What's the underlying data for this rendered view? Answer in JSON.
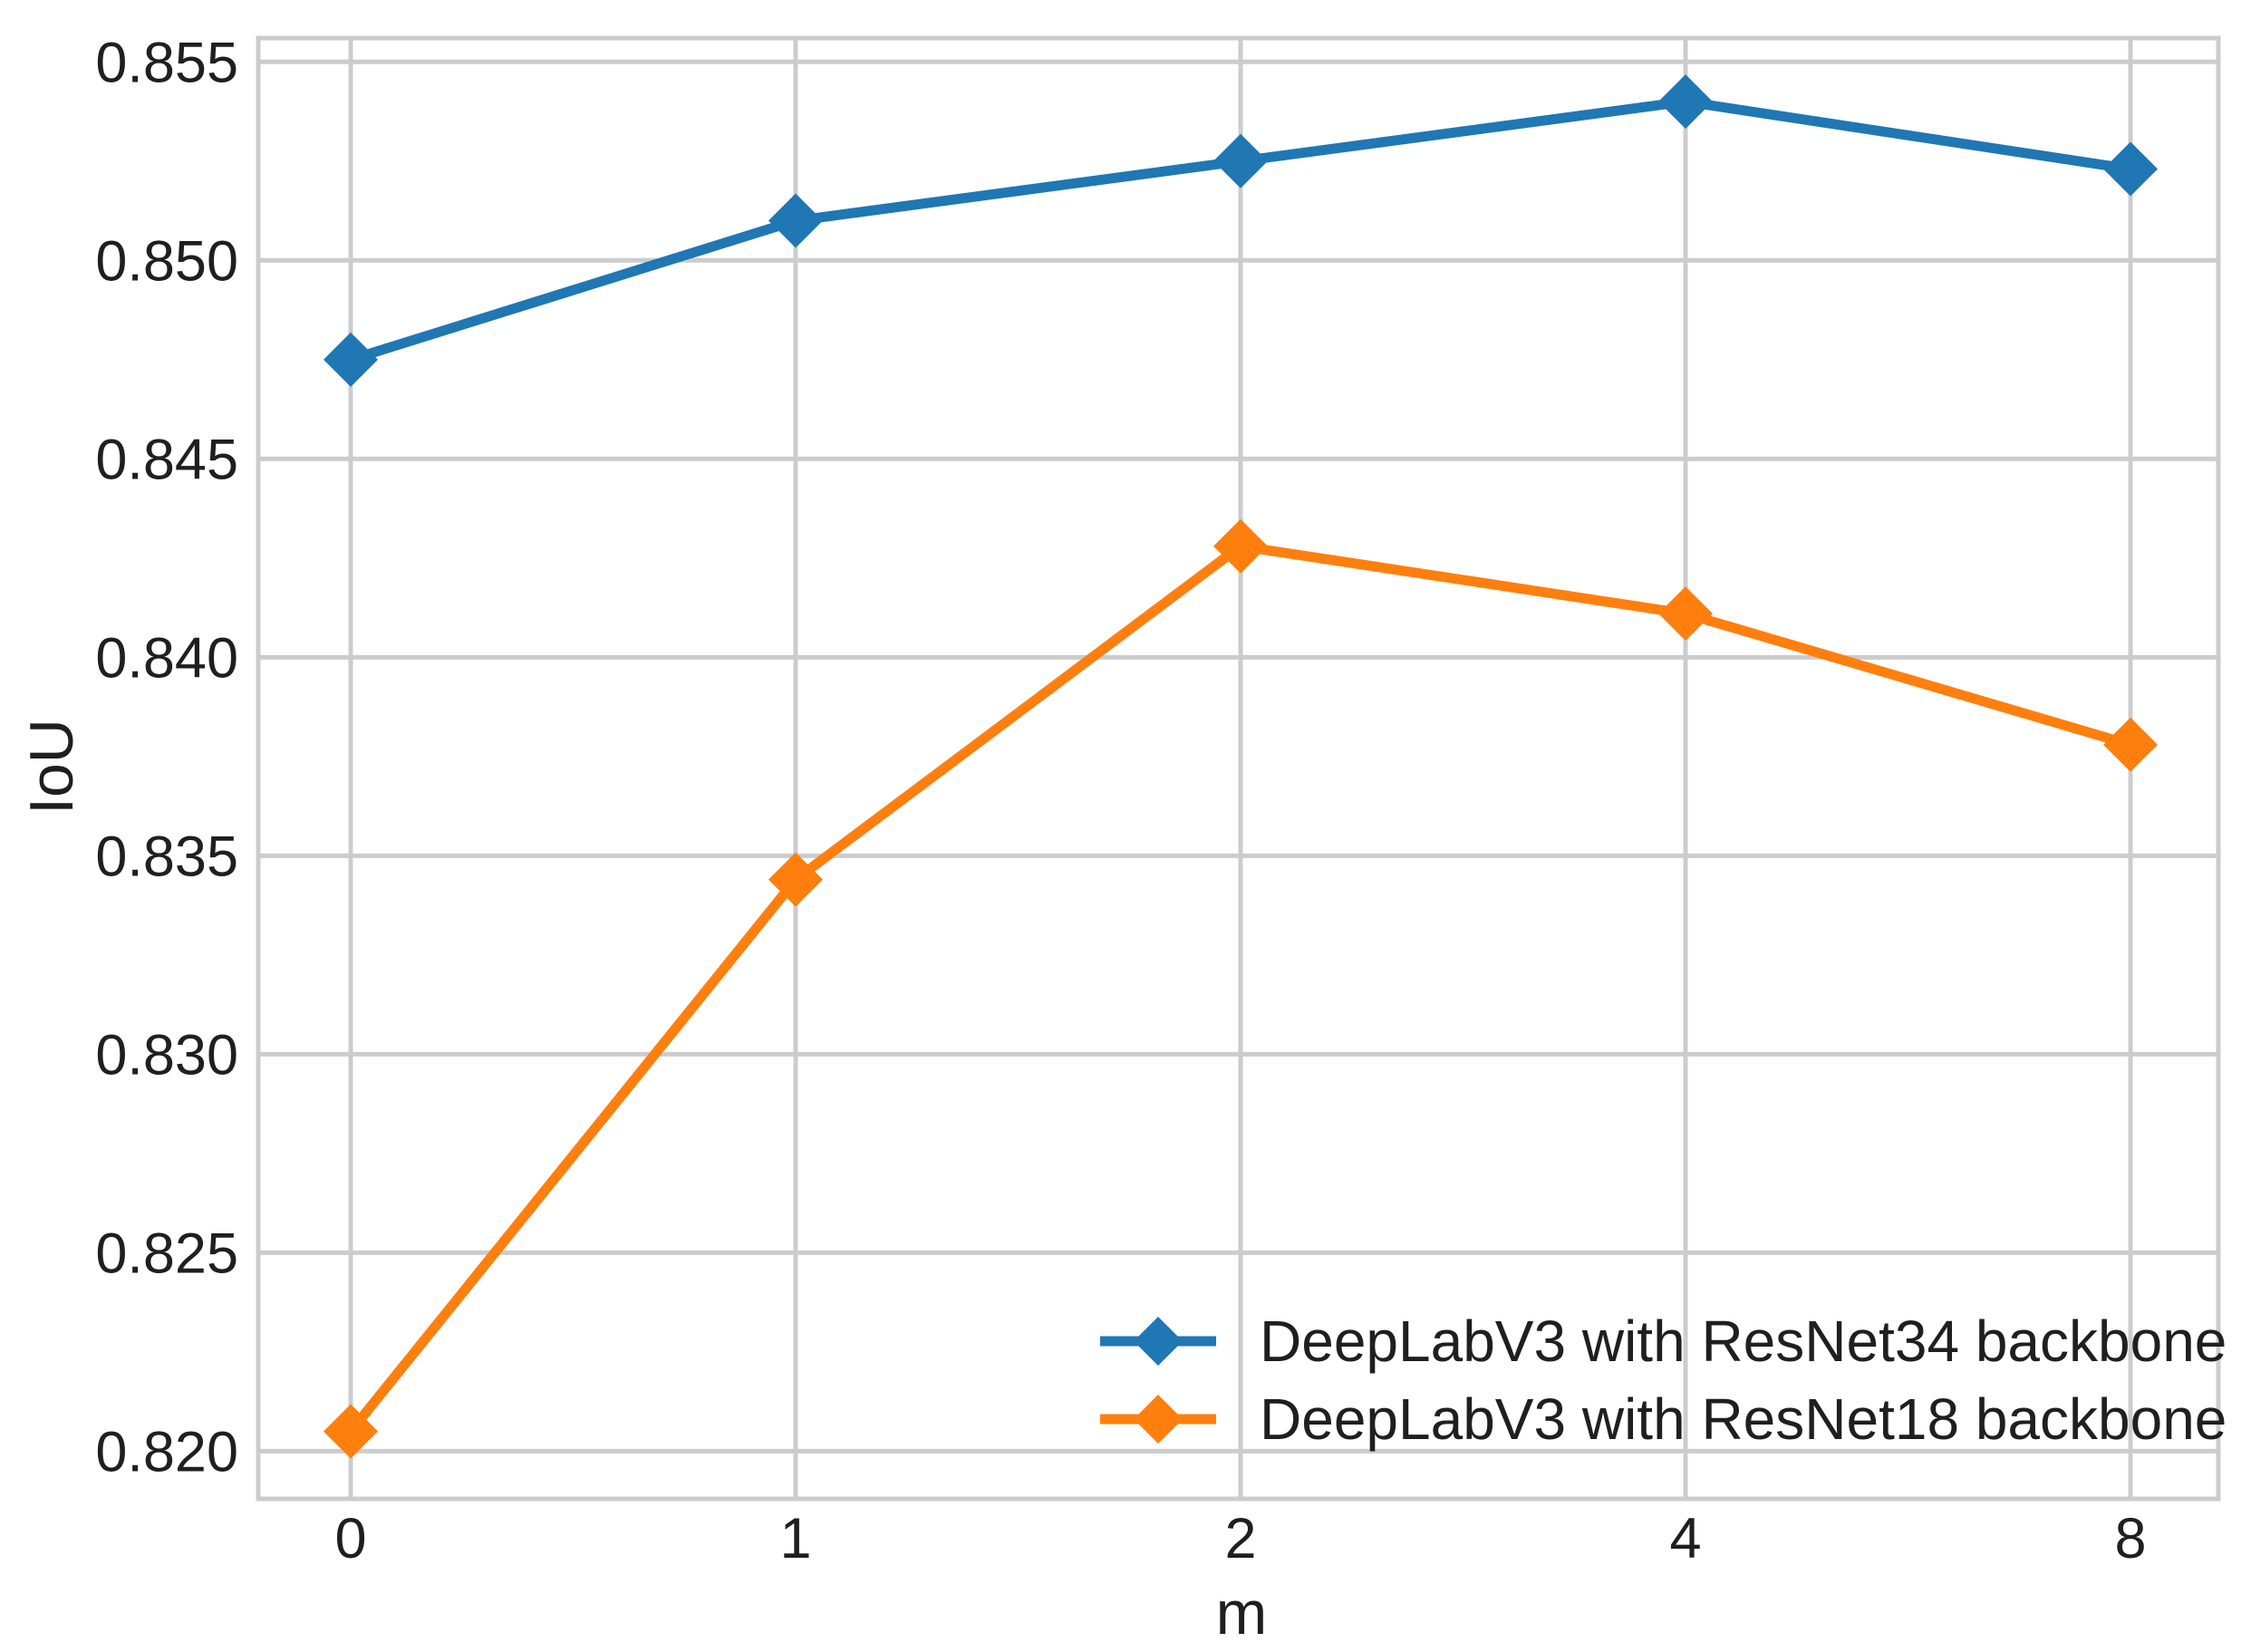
{
  "figure": {
    "background_color": "#ffffff",
    "grid_color": "#cccccc",
    "text_color": "#1f1f1f"
  },
  "chart_data": {
    "type": "line",
    "title": "",
    "xlabel": "m",
    "ylabel": "IoU",
    "categories": [
      "0",
      "1",
      "2",
      "4",
      "8"
    ],
    "yticks": [
      0.82,
      0.825,
      0.83,
      0.835,
      0.84,
      0.845,
      0.85,
      0.855
    ],
    "ylim": [
      0.8188,
      0.8556
    ],
    "grid": true,
    "legend_position": "lower right",
    "marker": "diamond",
    "series": [
      {
        "name": "DeepLabV3 with ResNet34 backbone",
        "color": "#1f77b4",
        "values": [
          0.8475,
          0.851,
          0.8525,
          0.854,
          0.8523
        ]
      },
      {
        "name": "DeepLabV3 with ResNet18 backbone",
        "color": "#ff7f0e",
        "values": [
          0.8205,
          0.8344,
          0.8428,
          0.8411,
          0.8378
        ]
      }
    ]
  }
}
